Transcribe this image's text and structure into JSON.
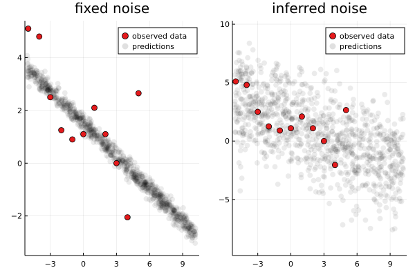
{
  "chart_data": [
    {
      "type": "scatter",
      "title": "fixed noise",
      "xlabel": "",
      "ylabel": "",
      "xlim": [
        -5.3,
        10.5
      ],
      "ylim": [
        -3.5,
        5.4
      ],
      "xticks": [
        -3,
        0,
        3,
        6,
        9
      ],
      "yticks": [
        -2,
        0,
        2,
        4
      ],
      "grid": true,
      "legend_position": "top-right",
      "observed_color": "#e41a1c",
      "prediction_color": "#000000",
      "series": [
        {
          "name": "observed data",
          "points": [
            [
              -5,
              5.1
            ],
            [
              -4,
              4.8
            ],
            [
              -3,
              2.5
            ],
            [
              -2,
              1.25
            ],
            [
              -1,
              0.9
            ],
            [
              0,
              1.1
            ],
            [
              1,
              2.1
            ],
            [
              2,
              1.1
            ],
            [
              3,
              0.0
            ],
            [
              4,
              -2.05
            ],
            [
              5,
              2.65
            ]
          ]
        },
        {
          "name": "predictions",
          "model": {
            "intercept": 1.5,
            "slope": -0.41,
            "spread": 0.18
          }
        }
      ]
    },
    {
      "type": "scatter",
      "title": "inferred noise",
      "xlabel": "",
      "ylabel": "",
      "xlim": [
        -5.3,
        10.5
      ],
      "ylim": [
        -9.8,
        10.3
      ],
      "xticks": [
        -3,
        0,
        3,
        6,
        9
      ],
      "yticks": [
        -5,
        0,
        5,
        10
      ],
      "grid": true,
      "legend_position": "top-right",
      "observed_color": "#e41a1c",
      "prediction_color": "#000000",
      "series": [
        {
          "name": "observed data",
          "points": [
            [
              -5,
              5.1
            ],
            [
              -4,
              4.8
            ],
            [
              -3,
              2.5
            ],
            [
              -2,
              1.25
            ],
            [
              -1,
              0.9
            ],
            [
              0,
              1.1
            ],
            [
              1,
              2.1
            ],
            [
              2,
              1.1
            ],
            [
              3,
              0.0
            ],
            [
              4,
              -2.05
            ],
            [
              5,
              2.65
            ]
          ]
        },
        {
          "name": "predictions",
          "model": {
            "intercept": 1.5,
            "slope": -0.41,
            "spread": 2.3
          }
        }
      ]
    }
  ]
}
